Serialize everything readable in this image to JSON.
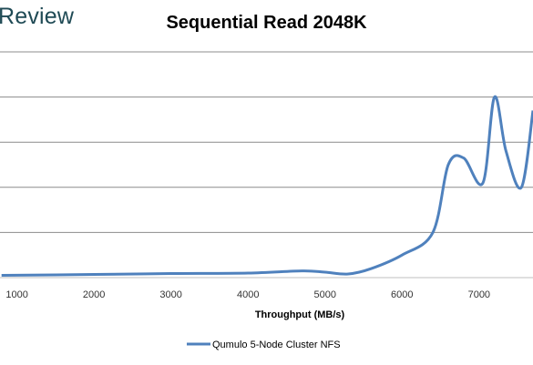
{
  "brand": {
    "text": "Review"
  },
  "chart_data": {
    "type": "line",
    "title": "Sequential Read 2048K",
    "xlabel": "Throughput (MB/s)",
    "ylabel": "",
    "x_ticks": [
      1000,
      2000,
      3000,
      4000,
      5000,
      6000,
      7000
    ],
    "xlim": [
      780,
      7700
    ],
    "ylim": [
      0,
      5
    ],
    "gridlines": true,
    "legend_position": "bottom",
    "series": [
      {
        "name": "Qumulo 5-Node Cluster NFS",
        "color": "#4f81bd",
        "x": [
          800,
          2000,
          3000,
          4000,
          4700,
          5000,
          5300,
          5600,
          6000,
          6400,
          6600,
          6800,
          7050,
          7200,
          7350,
          7550,
          7700
        ],
        "y": [
          0.05,
          0.07,
          0.09,
          0.1,
          0.15,
          0.12,
          0.08,
          0.2,
          0.5,
          1.0,
          2.5,
          2.65,
          2.1,
          4.0,
          2.8,
          2.0,
          3.7
        ]
      }
    ]
  }
}
